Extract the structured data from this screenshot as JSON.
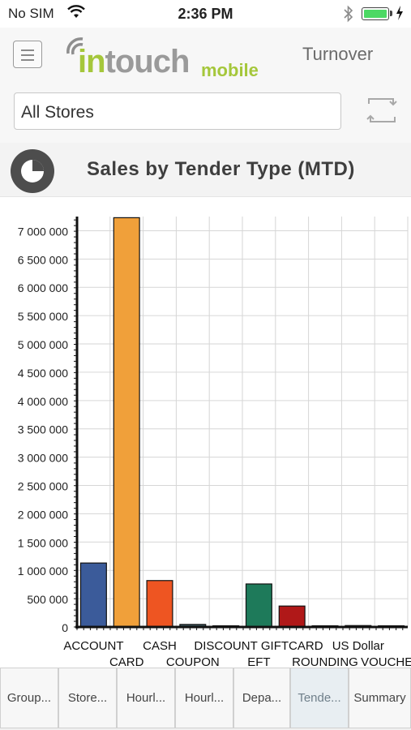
{
  "status_bar": {
    "carrier": "No SIM",
    "time": "2:36 PM"
  },
  "header": {
    "logo_part1": "in",
    "logo_part2": "touch",
    "logo_suffix": "mobile",
    "section": "Turnover"
  },
  "filter": {
    "store_value": "All Stores"
  },
  "report": {
    "title": "Sales by Tender Type (MTD)"
  },
  "chart_data": {
    "type": "bar",
    "categories": [
      "ACCOUNT",
      "CARD",
      "CASH",
      "COUPON",
      "DISCOUNT",
      "EFT",
      "GIFTCARD",
      "ROUNDING",
      "US Dollar",
      "VOUCHER"
    ],
    "category_labels_top": [
      "ACCOUNT",
      "",
      "CASH",
      "",
      "DISCOUNT",
      "",
      "GIFTCARD",
      "",
      "US Dollar",
      ""
    ],
    "category_labels_bottom": [
      "",
      "CARD",
      "",
      "COUPON",
      "",
      "EFT",
      "",
      "ROUNDING",
      "",
      "VOUCHER"
    ],
    "values": [
      1130000,
      7230000,
      820000,
      45000,
      12000,
      760000,
      370000,
      5000,
      25000,
      8000
    ],
    "colors": [
      "#3b5b9a",
      "#f0a03a",
      "#ee5522",
      "#3f5d64",
      "#4a5b6b",
      "#1e7a5a",
      "#b01818",
      "#f0c040",
      "#6bb898",
      "#889aa8"
    ],
    "ylim": [
      0,
      7250000
    ],
    "yticks": [
      0,
      500000,
      1000000,
      1500000,
      2000000,
      2500000,
      3000000,
      3500000,
      4000000,
      4500000,
      5000000,
      5500000,
      6000000,
      6500000,
      7000000
    ],
    "ytick_labels": [
      "0",
      "500 000",
      "1 000 000",
      "1 500 000",
      "2 000 000",
      "2 500 000",
      "3 000 000",
      "3 500 000",
      "4 000 000",
      "4 500 000",
      "5 000 000",
      "5 500 000",
      "6 000 000",
      "6 500 000",
      "7 000 000"
    ],
    "grid": true,
    "legend": "none"
  },
  "tabs": [
    {
      "label": "Group...",
      "active": false
    },
    {
      "label": "Store...",
      "active": false
    },
    {
      "label": "Hourl...",
      "active": false
    },
    {
      "label": "Hourl...",
      "active": false
    },
    {
      "label": "Depa...",
      "active": false
    },
    {
      "label": "Tende...",
      "active": true
    },
    {
      "label": "Summary",
      "active": false
    }
  ]
}
